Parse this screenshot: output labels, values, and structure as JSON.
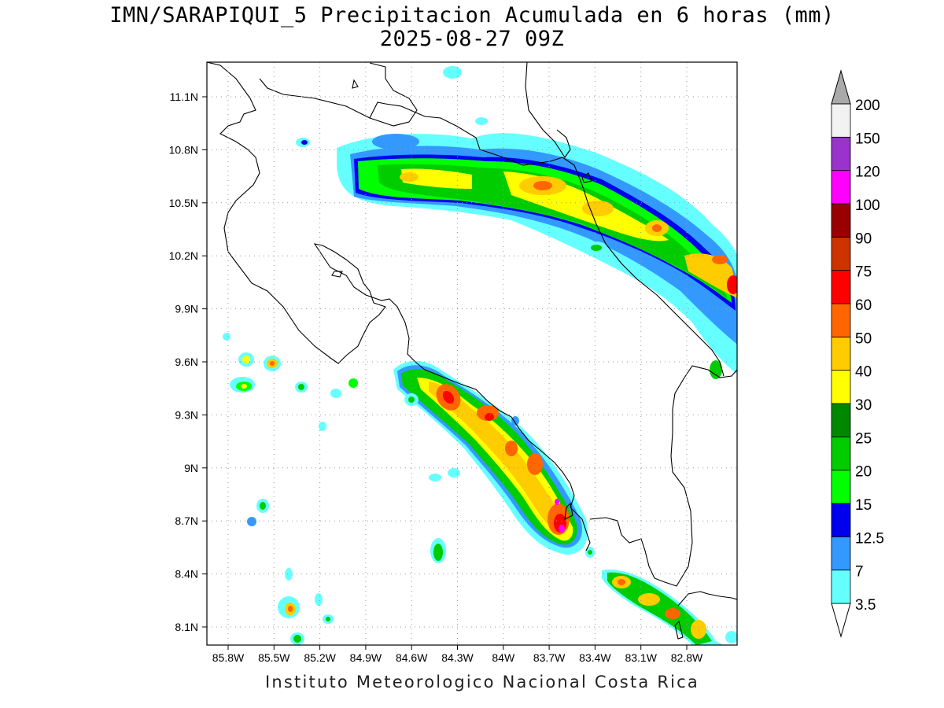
{
  "title_line1": "IMN/SARAPIQUI_5 Precipitacion Acumulada en 6 horas (mm)",
  "title_line2": "2025-08-27 09Z",
  "footer": "Instituto Meteorologico Nacional Costa Rica",
  "map": {
    "lon_range": [
      -86.0,
      -82.6
    ],
    "lat_range": [
      8.0,
      11.3
    ],
    "lon_ticks": [
      "85.8W",
      "85.5W",
      "85.2W",
      "84.9W",
      "84.6W",
      "84.3W",
      "84W",
      "83.7W",
      "83.4W",
      "83.1W",
      "82.8W"
    ],
    "lat_ticks": [
      "8.1N",
      "8.4N",
      "8.7N",
      "9N",
      "9.3N",
      "9.6N",
      "9.9N",
      "10.2N",
      "10.5N",
      "10.8N",
      "11.1N"
    ],
    "grid": true
  },
  "legend": {
    "levels": [
      "3.5",
      "7",
      "12.5",
      "15",
      "20",
      "25",
      "30",
      "40",
      "50",
      "60",
      "75",
      "90",
      "100",
      "120",
      "150",
      "200"
    ],
    "colors": [
      "#66ffff",
      "#3399ff",
      "#0000ee",
      "#00ff00",
      "#00cc00",
      "#008800",
      "#ffff00",
      "#ffcc00",
      "#ff6600",
      "#ff0000",
      "#cc3300",
      "#990000",
      "#ff00ff",
      "#9933cc",
      "#f2f2f2",
      "#aaaaaa"
    ]
  }
}
